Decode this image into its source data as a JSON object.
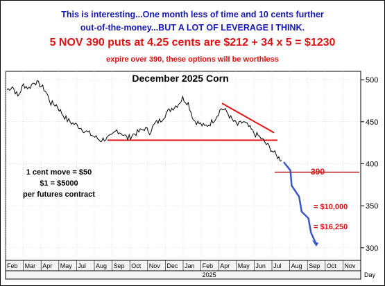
{
  "header": {
    "line1": "This is interesting...One month less of time and 10 cents further",
    "line2": "out-of-the-money...BUT A LOT OF LEVERAGE I THINK.",
    "line3": "5 NOV 390 puts at 4.25 cents are $212 + 34 x 5 = $1230",
    "line4": "expire over 390, these options will be worthless"
  },
  "chart_data": {
    "type": "line",
    "title": "December 2025 Corn",
    "ylim": [
      285,
      510
    ],
    "yticks": [
      300,
      350,
      400,
      450,
      500
    ],
    "xticks": [
      "Feb",
      "Mar",
      "Apr",
      "May",
      "Jul",
      "Aug",
      "Sep",
      "Oct",
      "Nov",
      "Dec",
      "Jan",
      "Feb",
      "Apr",
      "May",
      "Jun",
      "Jul",
      "Aug",
      "Sep",
      "Oct",
      "Nov"
    ],
    "year_label": "2025",
    "period_label": "Day",
    "series": [
      {
        "values": [
          488,
          492,
          480,
          494,
          490,
          498,
          494,
          487,
          472,
          470,
          460,
          452,
          448,
          445,
          440,
          436,
          432,
          428,
          430,
          432,
          440,
          436,
          430,
          435,
          438,
          442,
          438,
          448,
          452,
          460,
          466,
          470,
          478,
          472,
          452,
          448,
          444,
          448,
          455,
          466,
          462,
          452,
          446,
          450,
          444,
          436,
          432,
          425,
          418,
          410,
          404
        ]
      }
    ],
    "projection": [
      402,
      392,
      374,
      361,
      343,
      335,
      318,
      304
    ],
    "support_line": 428,
    "resistance_line": {
      "start": 472,
      "end": 437
    },
    "strike_level": 390
  },
  "annotations": {
    "cent_move": "1 cent move = $50",
    "dollar_move": "$1 = $5000",
    "per_contract": "per futures contract",
    "strike_label": "390",
    "target1": "= $10,000",
    "target2": "= $16,250"
  },
  "colors": {
    "header_blue": "#1616b4",
    "header_red": "#e01010",
    "price": "#000000",
    "trend_lines": "#e01010",
    "projection": "#3a55c8"
  }
}
